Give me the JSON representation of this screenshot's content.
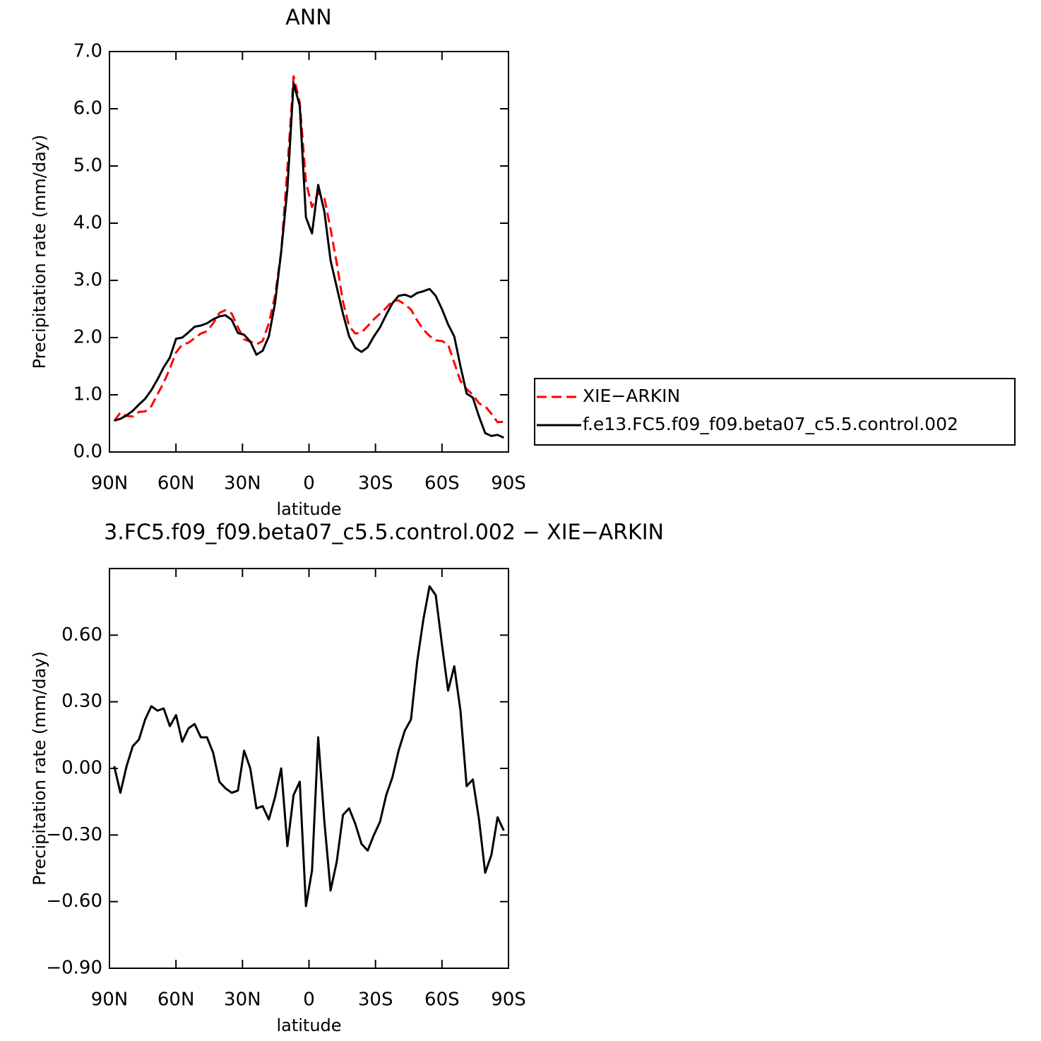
{
  "chart_data": [
    {
      "type": "line",
      "title": "ANN",
      "xlabel": "latitude",
      "ylabel": "Precipitation rate (mm/day)",
      "x": [
        87.86,
        85.07,
        82.28,
        79.49,
        76.7,
        73.91,
        71.12,
        68.33,
        65.54,
        62.75,
        59.96,
        57.17,
        54.38,
        51.59,
        48.8,
        46.01,
        43.22,
        40.43,
        37.64,
        34.85,
        32.06,
        29.27,
        26.48,
        23.69,
        20.9,
        18.11,
        15.32,
        12.53,
        9.74,
        6.95,
        4.16,
        1.37,
        -1.37,
        -4.16,
        -6.95,
        -9.74,
        -12.53,
        -15.32,
        -18.11,
        -20.9,
        -23.69,
        -26.48,
        -29.27,
        -32.06,
        -34.85,
        -37.64,
        -40.43,
        -43.22,
        -46.01,
        -48.8,
        -51.59,
        -54.38,
        -57.17,
        -59.96,
        -62.75,
        -65.54,
        -68.33,
        -71.12,
        -73.91,
        -76.7,
        -79.49,
        -82.28,
        -85.07,
        -87.86
      ],
      "series": [
        {
          "name": "XIE−ARKIN",
          "color": "#ff0000",
          "linestyle": "dashed",
          "values": [
            0.54,
            0.69,
            0.63,
            0.62,
            0.7,
            0.71,
            0.8,
            1.01,
            1.21,
            1.46,
            1.74,
            1.88,
            1.91,
            1.99,
            2.07,
            2.11,
            2.25,
            2.43,
            2.48,
            2.42,
            2.18,
            1.97,
            1.93,
            1.88,
            1.94,
            2.25,
            2.73,
            3.5,
            4.95,
            6.57,
            6.11,
            4.72,
            4.28,
            4.53,
            4.44,
            3.9,
            3.3,
            2.63,
            2.2,
            2.07,
            2.09,
            2.2,
            2.32,
            2.42,
            2.52,
            2.64,
            2.65,
            2.58,
            2.49,
            2.3,
            2.14,
            2.03,
            1.95,
            1.94,
            1.88,
            1.56,
            1.24,
            1.1,
            1.0,
            0.85,
            0.8,
            0.67,
            0.52,
            0.53
          ]
        },
        {
          "name": "f.e13.FC5.f09_f09.beta07_c5.5.control.002",
          "color": "#000000",
          "linestyle": "solid",
          "values": [
            0.55,
            0.58,
            0.64,
            0.72,
            0.83,
            0.93,
            1.08,
            1.27,
            1.48,
            1.65,
            1.98,
            2.0,
            2.09,
            2.19,
            2.21,
            2.25,
            2.32,
            2.37,
            2.39,
            2.31,
            2.08,
            2.05,
            1.93,
            1.7,
            1.77,
            2.02,
            2.6,
            3.5,
            4.6,
            6.45,
            6.05,
            4.1,
            3.82,
            4.67,
            4.2,
            3.35,
            2.88,
            2.42,
            2.02,
            1.82,
            1.75,
            1.83,
            2.02,
            2.18,
            2.4,
            2.6,
            2.73,
            2.75,
            2.71,
            2.78,
            2.81,
            2.85,
            2.73,
            2.5,
            2.23,
            2.02,
            1.5,
            1.02,
            0.95,
            0.62,
            0.33,
            0.28,
            0.3,
            0.25
          ]
        }
      ],
      "xlim": [
        90,
        -90
      ],
      "xticks": [
        {
          "value": 90,
          "label": "90N"
        },
        {
          "value": 60,
          "label": "60N"
        },
        {
          "value": 30,
          "label": "30N"
        },
        0,
        {
          "value": -30,
          "label": "30S"
        },
        {
          "value": -60,
          "label": "60S"
        },
        {
          "value": -90,
          "label": "90S"
        }
      ],
      "ylim": [
        0,
        7
      ],
      "yticks": [
        {
          "value": 0,
          "label": "0.0"
        },
        {
          "value": 1,
          "label": "1.0"
        },
        {
          "value": 2,
          "label": "2.0"
        },
        {
          "value": 3,
          "label": "3.0"
        },
        {
          "value": 4,
          "label": "4.0"
        },
        {
          "value": 5,
          "label": "5.0"
        },
        {
          "value": 6,
          "label": "6.0"
        },
        {
          "value": 7,
          "label": "7.0"
        }
      ],
      "legend": "right"
    },
    {
      "type": "line",
      "title": "3.FC5.f09_f09.beta07_c5.5.control.002 − XIE−ARKIN",
      "xlabel": "latitude",
      "ylabel": "Precipitation rate (mm/day)",
      "x": [
        87.86,
        85.07,
        82.28,
        79.49,
        76.7,
        73.91,
        71.12,
        68.33,
        65.54,
        62.75,
        59.96,
        57.17,
        54.38,
        51.59,
        48.8,
        46.01,
        43.22,
        40.43,
        37.64,
        34.85,
        32.06,
        29.27,
        26.48,
        23.69,
        20.9,
        18.11,
        15.32,
        12.53,
        9.74,
        6.95,
        4.16,
        1.37,
        -1.37,
        -4.16,
        -6.95,
        -9.74,
        -12.53,
        -15.32,
        -18.11,
        -20.9,
        -23.69,
        -26.48,
        -29.27,
        -32.06,
        -34.85,
        -37.64,
        -40.43,
        -43.22,
        -46.01,
        -48.8,
        -51.59,
        -54.38,
        -57.17,
        -59.96,
        -62.75,
        -65.54,
        -68.33,
        -71.12,
        -73.91,
        -76.7,
        -79.49,
        -82.28,
        -85.07,
        -87.86
      ],
      "series": [
        {
          "color": "#000000",
          "linestyle": "solid",
          "values": [
            0.01,
            -0.11,
            0.01,
            0.1,
            0.13,
            0.22,
            0.28,
            0.26,
            0.27,
            0.19,
            0.24,
            0.12,
            0.18,
            0.2,
            0.14,
            0.14,
            0.07,
            -0.06,
            -0.09,
            -0.11,
            -0.1,
            0.08,
            0.0,
            -0.18,
            -0.17,
            -0.23,
            -0.13,
            0.0,
            -0.35,
            -0.12,
            -0.06,
            -0.62,
            -0.46,
            0.14,
            -0.24,
            -0.55,
            -0.42,
            -0.21,
            -0.18,
            -0.25,
            -0.34,
            -0.37,
            -0.3,
            -0.24,
            -0.12,
            -0.04,
            0.08,
            0.17,
            0.22,
            0.48,
            0.67,
            0.82,
            0.78,
            0.56,
            0.35,
            0.46,
            0.26,
            -0.08,
            -0.05,
            -0.23,
            -0.47,
            -0.39,
            -0.22,
            -0.28
          ]
        }
      ],
      "xlim": [
        90,
        -90
      ],
      "xticks": [
        {
          "value": 90,
          "label": "90N"
        },
        {
          "value": 60,
          "label": "60N"
        },
        {
          "value": 30,
          "label": "30N"
        },
        0,
        {
          "value": -30,
          "label": "30S"
        },
        {
          "value": -60,
          "label": "60S"
        },
        {
          "value": -90,
          "label": "90S"
        }
      ],
      "ylim": [
        -0.9,
        0.9
      ],
      "yticks": [
        {
          "value": -0.9,
          "label": "−0.90"
        },
        {
          "value": -0.6,
          "label": "−0.60"
        },
        {
          "value": -0.3,
          "label": "−0.30"
        },
        {
          "value": 0,
          "label": "0.00"
        },
        {
          "value": 0.3,
          "label": "0.30"
        },
        {
          "value": 0.6,
          "label": "0.60"
        }
      ]
    }
  ]
}
